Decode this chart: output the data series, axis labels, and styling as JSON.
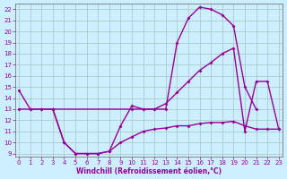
{
  "bg_color": "#cceeff",
  "grid_color": "#b0d8e0",
  "line_color": "#990099",
  "xlabel": "Windchill (Refroidissement éolien,°C)",
  "xlim": [
    -0.3,
    23.3
  ],
  "ylim": [
    8.7,
    22.5
  ],
  "xticks": [
    0,
    1,
    2,
    3,
    4,
    5,
    6,
    7,
    8,
    9,
    10,
    11,
    12,
    13,
    14,
    15,
    16,
    17,
    18,
    19,
    20,
    21,
    22,
    23
  ],
  "yticks": [
    9,
    10,
    11,
    12,
    13,
    14,
    15,
    16,
    17,
    18,
    19,
    20,
    21,
    22
  ],
  "curve1_x": [
    0,
    1,
    2,
    3,
    4,
    5,
    6,
    7,
    8,
    9,
    10,
    11,
    12,
    13,
    14,
    15,
    16,
    17,
    18,
    19,
    20,
    21
  ],
  "curve1_y": [
    14.7,
    13.0,
    13.0,
    13.0,
    10.0,
    9.0,
    9.0,
    9.0,
    9.2,
    11.5,
    13.3,
    13.0,
    13.0,
    13.0,
    19.0,
    21.2,
    22.2,
    22.0,
    21.5,
    20.5,
    15.0,
    13.0
  ],
  "curve2_x": [
    0,
    1,
    2,
    3,
    10,
    11,
    12,
    13,
    14,
    15,
    16,
    17,
    18,
    19,
    20,
    21,
    22,
    23
  ],
  "curve2_y": [
    13.0,
    13.0,
    13.0,
    13.0,
    13.0,
    13.0,
    13.0,
    13.5,
    14.5,
    15.5,
    16.5,
    17.2,
    18.0,
    18.5,
    11.0,
    15.5,
    15.5,
    11.2
  ],
  "curve3_x": [
    3,
    4,
    5,
    6,
    7,
    8,
    9,
    10,
    11,
    12,
    13,
    14,
    15,
    16,
    17,
    18,
    19,
    20,
    21,
    22,
    23
  ],
  "curve3_y": [
    13.0,
    10.0,
    9.0,
    9.0,
    9.0,
    9.2,
    10.0,
    10.5,
    11.0,
    11.2,
    11.3,
    11.5,
    11.5,
    11.7,
    11.8,
    11.8,
    11.9,
    11.5,
    11.2,
    11.2,
    11.2
  ]
}
